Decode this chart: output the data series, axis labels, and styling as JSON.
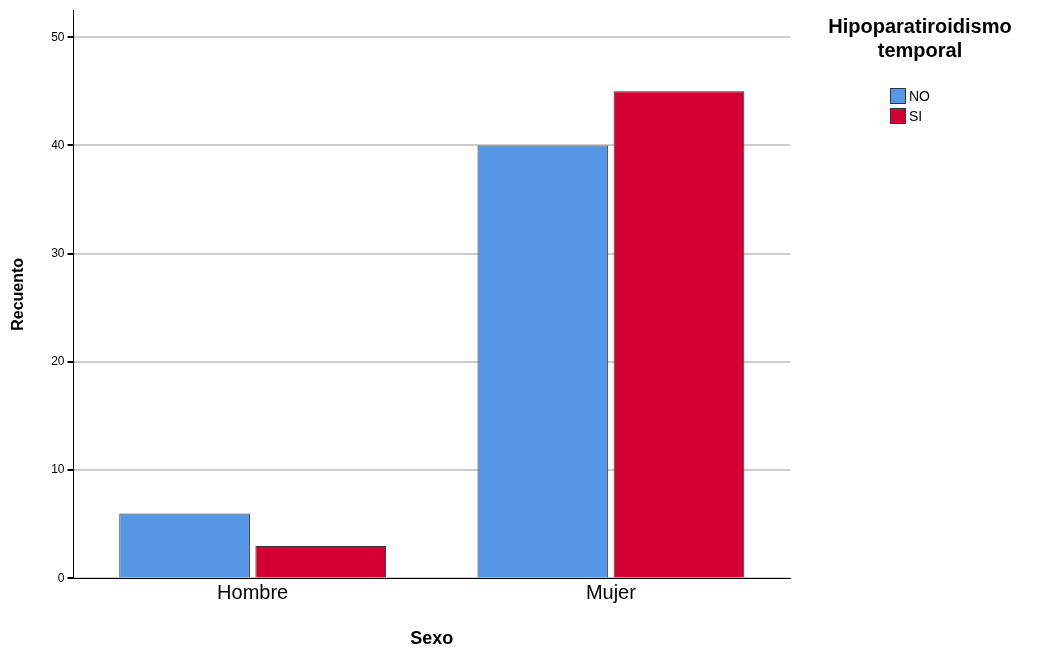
{
  "chart_data": {
    "type": "bar",
    "xlabel": "Sexo",
    "ylabel": "Recuento",
    "legend_title": "Hipoparatiroidismo temporal",
    "categories": [
      "Hombre",
      "Mujer"
    ],
    "series": [
      {
        "name": "NO",
        "color": "#5596e6",
        "values": [
          6,
          40
        ]
      },
      {
        "name": "SI",
        "color": "#d50032",
        "values": [
          3,
          45
        ]
      }
    ],
    "ylim": [
      0,
      52.5
    ],
    "yticks": [
      0,
      10,
      20,
      30,
      40,
      50
    ],
    "grid": "y",
    "legend": "top right"
  }
}
